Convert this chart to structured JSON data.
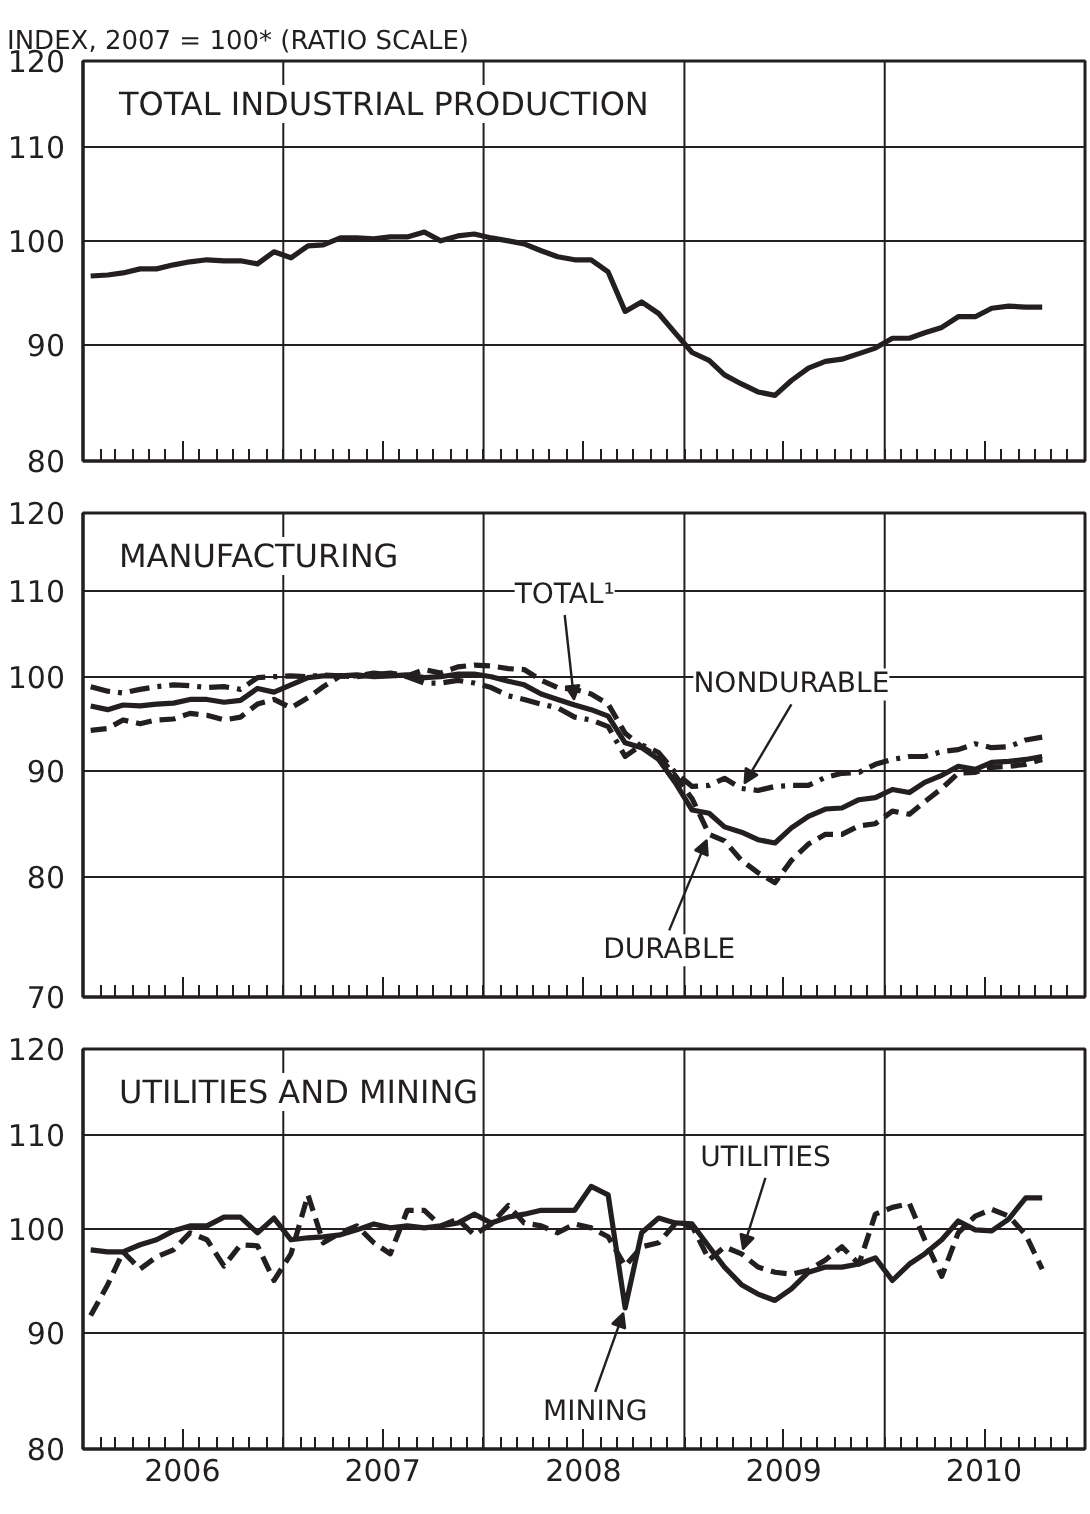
{
  "chart_data": [
    {
      "type": "line",
      "title": "TOTAL INDUSTRIAL PRODUCTION",
      "ylabel": "INDEX, 2007 = 100* (RATIO SCALE)",
      "log": "y",
      "grid": "y",
      "tick_labels": "y",
      "x": [
        "2006-01-15",
        "2006-02-15",
        "2006-03-15",
        "2006-04-15",
        "2006-05-15",
        "2006-06-15",
        "2006-07-15",
        "2006-08-15",
        "2006-09-15",
        "2006-10-15",
        "2006-11-15",
        "2006-12-15",
        "2007-01-15",
        "2007-02-15",
        "2007-03-15",
        "2007-04-15",
        "2007-05-15",
        "2007-06-15",
        "2007-07-15",
        "2007-08-15",
        "2007-09-15",
        "2007-10-15",
        "2007-11-15",
        "2007-12-15",
        "2008-01-15",
        "2008-02-15",
        "2008-03-15",
        "2008-04-15",
        "2008-05-15",
        "2008-06-15",
        "2008-07-15",
        "2008-08-15",
        "2008-09-15",
        "2008-10-15",
        "2008-11-15",
        "2008-12-15",
        "2009-01-15",
        "2009-02-15",
        "2009-03-15",
        "2009-04-15",
        "2009-05-15",
        "2009-06-15",
        "2009-07-15",
        "2009-08-15",
        "2009-09-15",
        "2009-10-15",
        "2009-11-15",
        "2009-12-15",
        "2010-01-15",
        "2010-02-15",
        "2010-03-15",
        "2010-04-15",
        "2010-05-15",
        "2010-06-15",
        "2010-07-15",
        "2010-08-15",
        "2010-09-15",
        "2010-10-15"
      ],
      "xlim": [
        "2006-01-01",
        "2011-01-01"
      ],
      "xticks": [
        {
          "value": "2006-07-01",
          "label": null
        },
        {
          "value": "2007-07-01",
          "label": null
        },
        {
          "value": "2008-07-01",
          "label": null
        },
        {
          "value": "2009-07-01",
          "label": null
        },
        {
          "value": "2010-07-01",
          "label": null
        }
      ],
      "ylim": [
        80,
        120
      ],
      "yticks": [
        80,
        90,
        100,
        110,
        120
      ],
      "ref_lines": [
        {
          "axis": "x",
          "value": "2007-01-01"
        },
        {
          "axis": "x",
          "value": "2008-01-01"
        },
        {
          "axis": "x",
          "value": "2009-01-01"
        },
        {
          "axis": "x",
          "value": "2010-01-01"
        }
      ],
      "series": [
        {
          "color": "#231f20",
          "line_style": "solid",
          "values": [
            96.5,
            96.6,
            96.8,
            97.2,
            97.2,
            97.6,
            97.9,
            98.1,
            98.0,
            98.0,
            97.7,
            98.9,
            98.3,
            99.5,
            99.6,
            100.3,
            100.3,
            100.2,
            100.4,
            100.4,
            100.9,
            100.0,
            100.5,
            100.7,
            100.3,
            100.0,
            99.7,
            99.0,
            98.4,
            98.1,
            98.1,
            96.9,
            93.1,
            94.0,
            92.9,
            91.1,
            89.3,
            88.6,
            87.3,
            86.5,
            85.8,
            85.5,
            86.8,
            87.9,
            88.5,
            88.7,
            89.2,
            89.7,
            90.6,
            90.6,
            91.1,
            91.6,
            92.6,
            92.6,
            93.4,
            93.6,
            93.5,
            93.5
          ]
        }
      ]
    },
    {
      "type": "line",
      "title": "MANUFACTURING",
      "log": "y",
      "grid": "y",
      "tick_labels": "y",
      "x": [
        "2006-01-15",
        "2006-02-15",
        "2006-03-15",
        "2006-04-15",
        "2006-05-15",
        "2006-06-15",
        "2006-07-15",
        "2006-08-15",
        "2006-09-15",
        "2006-10-15",
        "2006-11-15",
        "2006-12-15",
        "2007-01-15",
        "2007-02-15",
        "2007-03-15",
        "2007-04-15",
        "2007-05-15",
        "2007-06-15",
        "2007-07-15",
        "2007-08-15",
        "2007-09-15",
        "2007-10-15",
        "2007-11-15",
        "2007-12-15",
        "2008-01-15",
        "2008-02-15",
        "2008-03-15",
        "2008-04-15",
        "2008-05-15",
        "2008-06-15",
        "2008-07-15",
        "2008-08-15",
        "2008-09-15",
        "2008-10-15",
        "2008-11-15",
        "2008-12-15",
        "2009-01-15",
        "2009-02-15",
        "2009-03-15",
        "2009-04-15",
        "2009-05-15",
        "2009-06-15",
        "2009-07-15",
        "2009-08-15",
        "2009-09-15",
        "2009-10-15",
        "2009-11-15",
        "2009-12-15",
        "2010-01-15",
        "2010-02-15",
        "2010-03-15",
        "2010-04-15",
        "2010-05-15",
        "2010-06-15",
        "2010-07-15",
        "2010-08-15",
        "2010-09-15",
        "2010-10-15"
      ],
      "xlim": [
        "2006-01-01",
        "2011-01-01"
      ],
      "xticks": [
        {
          "value": "2006-07-01",
          "label": null
        },
        {
          "value": "2007-07-01",
          "label": null
        },
        {
          "value": "2008-07-01",
          "label": null
        },
        {
          "value": "2009-07-01",
          "label": null
        },
        {
          "value": "2010-07-01",
          "label": null
        }
      ],
      "ylim": [
        70,
        120
      ],
      "yticks": [
        70,
        80,
        90,
        100,
        110,
        120
      ],
      "ref_lines": [
        {
          "axis": "x",
          "value": "2007-01-01"
        },
        {
          "axis": "x",
          "value": "2008-01-01"
        },
        {
          "axis": "x",
          "value": "2009-01-01"
        },
        {
          "axis": "x",
          "value": "2010-01-01"
        }
      ],
      "annotations": [
        {
          "text": "TOTAL¹",
          "x": "2008-06-15",
          "y": 96.9
        },
        {
          "text": "NONDURABLE",
          "x": "2009-04-15",
          "y": 88.3
        },
        {
          "text": "DURABLE",
          "x": "2009-02-15",
          "y": 83.9
        }
      ],
      "series": [
        {
          "color": "#231f20",
          "line_style": "solid",
          "values": [
            96.8,
            96.4,
            96.9,
            96.8,
            97.0,
            97.1,
            97.5,
            97.5,
            97.2,
            97.4,
            98.7,
            98.3,
            99.1,
            99.9,
            100.1,
            100.1,
            100.2,
            100.0,
            100.1,
            100.2,
            99.9,
            100.0,
            100.3,
            100.3,
            100.0,
            99.5,
            99.1,
            98.1,
            97.5,
            96.9,
            96.4,
            95.7,
            92.9,
            92.4,
            91.2,
            88.9,
            86.2,
            85.9,
            84.6,
            84.1,
            83.4,
            83.1,
            84.5,
            85.6,
            86.3,
            86.4,
            87.2,
            87.4,
            88.2,
            87.9,
            88.9,
            89.6,
            90.5,
            90.2,
            90.9,
            91.0,
            91.2,
            91.5
          ]
        },
        {
          "color": "#231f20",
          "line_style": "dashdot",
          "values": [
            98.9,
            98.4,
            98.2,
            98.6,
            98.9,
            99.1,
            99.0,
            98.8,
            98.9,
            98.6,
            99.9,
            100.0,
            100.1,
            100.0,
            100.2,
            100.1,
            100.1,
            100.4,
            100.2,
            100.0,
            99.3,
            99.3,
            99.6,
            99.3,
            98.8,
            97.9,
            97.5,
            97.0,
            96.6,
            95.6,
            95.3,
            94.6,
            91.5,
            92.7,
            91.9,
            89.9,
            88.5,
            88.6,
            89.3,
            88.3,
            88.1,
            88.5,
            88.6,
            88.6,
            89.4,
            89.8,
            89.9,
            90.7,
            91.2,
            91.5,
            91.5,
            92.0,
            92.2,
            92.8,
            92.4,
            92.5,
            93.2,
            93.5
          ]
        },
        {
          "color": "#231f20",
          "line_style": "dashed",
          "values": [
            94.2,
            94.4,
            95.3,
            94.9,
            95.3,
            95.4,
            96.0,
            95.8,
            95.3,
            95.6,
            97.0,
            97.5,
            96.6,
            97.7,
            98.9,
            100.1,
            100.0,
            100.2,
            100.4,
            100.1,
            100.8,
            100.4,
            101.1,
            101.3,
            101.2,
            100.9,
            100.8,
            99.6,
            98.8,
            98.6,
            98.1,
            97.0,
            93.9,
            92.5,
            91.5,
            89.6,
            87.3,
            83.9,
            83.3,
            81.5,
            80.4,
            79.5,
            81.5,
            83.0,
            83.9,
            83.9,
            84.7,
            84.9,
            86.1,
            85.8,
            87.0,
            88.3,
            89.8,
            89.9,
            90.4,
            90.5,
            90.7,
            91.2
          ]
        }
      ]
    },
    {
      "type": "line",
      "title": "UTILITIES AND MINING",
      "log": "y",
      "grid": "y",
      "x": [
        "2006-01-15",
        "2006-02-15",
        "2006-03-15",
        "2006-04-15",
        "2006-05-15",
        "2006-06-15",
        "2006-07-15",
        "2006-08-15",
        "2006-09-15",
        "2006-10-15",
        "2006-11-15",
        "2006-12-15",
        "2007-01-15",
        "2007-02-15",
        "2007-03-15",
        "2007-04-15",
        "2007-05-15",
        "2007-06-15",
        "2007-07-15",
        "2007-08-15",
        "2007-09-15",
        "2007-10-15",
        "2007-11-15",
        "2007-12-15",
        "2008-01-15",
        "2008-02-15",
        "2008-03-15",
        "2008-04-15",
        "2008-05-15",
        "2008-06-15",
        "2008-07-15",
        "2008-08-15",
        "2008-09-15",
        "2008-10-15",
        "2008-11-15",
        "2008-12-15",
        "2009-01-15",
        "2009-02-15",
        "2009-03-15",
        "2009-04-15",
        "2009-05-15",
        "2009-06-15",
        "2009-07-15",
        "2009-08-15",
        "2009-09-15",
        "2009-10-15",
        "2009-11-15",
        "2009-12-15",
        "2010-01-15",
        "2010-02-15",
        "2010-03-15",
        "2010-04-15",
        "2010-05-15",
        "2010-06-15",
        "2010-07-15",
        "2010-08-15",
        "2010-09-15",
        "2010-10-15"
      ],
      "xlim": [
        "2006-01-01",
        "2011-01-01"
      ],
      "xticks": [
        {
          "value": "2006-07-01",
          "label": "2006"
        },
        {
          "value": "2007-07-01",
          "label": "2007"
        },
        {
          "value": "2008-07-01",
          "label": "2008"
        },
        {
          "value": "2009-07-01",
          "label": "2009"
        },
        {
          "value": "2010-07-01",
          "label": "2010"
        }
      ],
      "ylim": [
        80,
        120
      ],
      "yticks": [
        80,
        90,
        100,
        110,
        120
      ],
      "ref_lines": [
        {
          "axis": "x",
          "value": "2007-01-01"
        },
        {
          "axis": "x",
          "value": "2008-01-01"
        },
        {
          "axis": "x",
          "value": "2009-01-01"
        },
        {
          "axis": "x",
          "value": "2010-01-01"
        }
      ],
      "annotations": [
        {
          "text": "UTILITIES",
          "x": "2009-04-15",
          "y": 97.5
        },
        {
          "text": "MINING",
          "x": "2008-09-15",
          "y": 92.3
        }
      ],
      "series": [
        {
          "color": "#231f20",
          "line_style": "solid",
          "values": [
            97.9,
            97.7,
            97.7,
            98.4,
            98.9,
            99.8,
            100.3,
            100.3,
            101.2,
            101.2,
            99.6,
            101.1,
            98.9,
            99.1,
            99.2,
            99.4,
            99.9,
            100.5,
            100.1,
            100.3,
            100.1,
            100.3,
            100.6,
            101.5,
            100.6,
            101.2,
            101.5,
            101.9,
            101.9,
            101.9,
            104.4,
            103.5,
            92.3,
            99.6,
            101.1,
            100.6,
            100.5,
            98.2,
            96.2,
            94.5,
            93.6,
            93.0,
            94.1,
            95.7,
            96.2,
            96.2,
            96.5,
            97.1,
            94.9,
            96.5,
            97.5,
            98.9,
            100.8,
            99.9,
            99.8,
            101.0,
            103.2,
            103.2
          ]
        },
        {
          "color": "#231f20",
          "line_style": "dashed",
          "values": [
            91.6,
            94.5,
            97.7,
            96.0,
            97.2,
            97.9,
            99.6,
            98.9,
            96.3,
            98.4,
            98.3,
            94.9,
            97.5,
            103.5,
            98.6,
            99.6,
            100.3,
            98.6,
            97.5,
            101.9,
            101.9,
            100.3,
            101.0,
            99.4,
            100.5,
            102.4,
            100.6,
            100.3,
            99.6,
            100.5,
            100.1,
            99.2,
            96.3,
            98.2,
            98.6,
            100.5,
            100.3,
            96.9,
            98.2,
            97.5,
            96.2,
            95.7,
            95.5,
            95.9,
            96.9,
            98.2,
            96.5,
            101.5,
            102.2,
            102.6,
            98.9,
            95.3,
            99.6,
            101.3,
            102.0,
            101.3,
            99.4,
            96.0
          ]
        }
      ]
    }
  ]
}
